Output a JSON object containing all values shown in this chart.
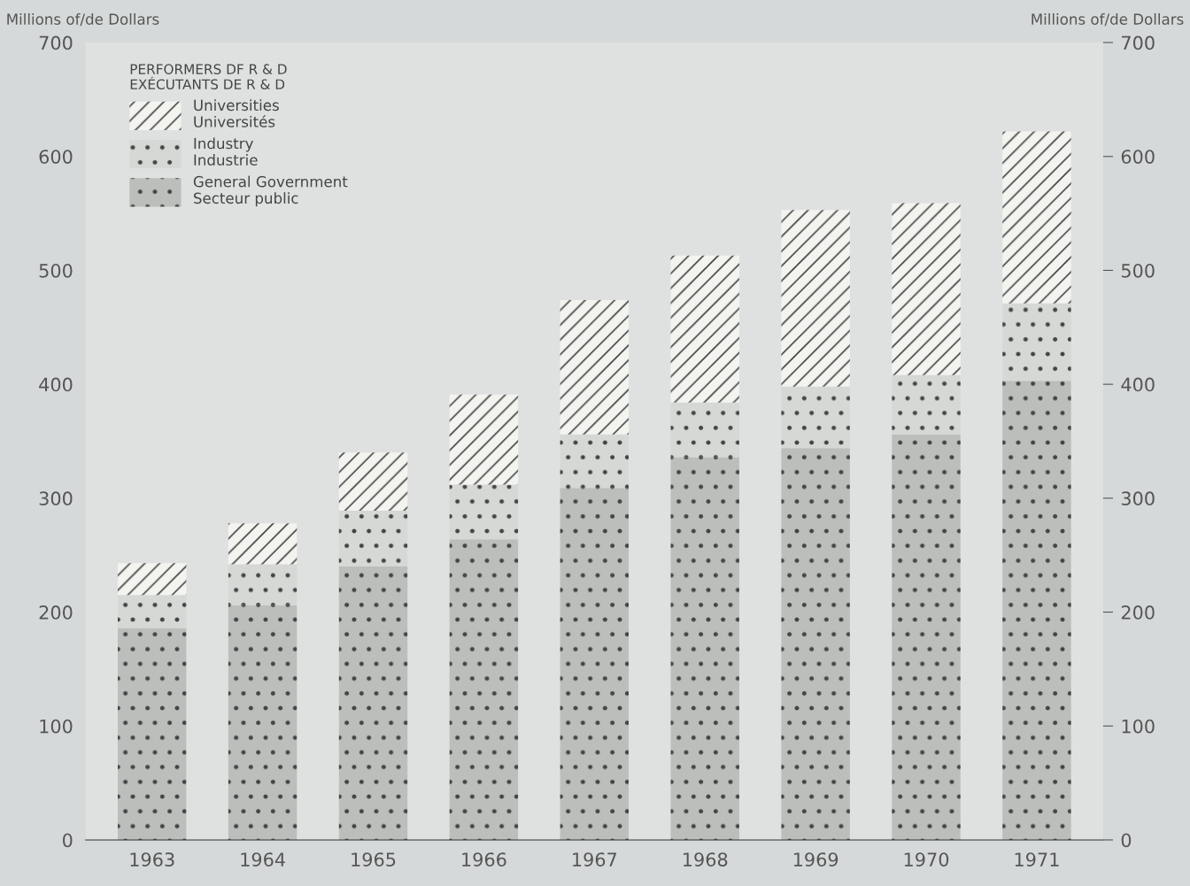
{
  "chart_data": {
    "type": "bar",
    "stacked": true,
    "ylabel": "Millions of/de Dollars",
    "y2label": "Millions of/de Dollars",
    "legend_title": "PERFORMERS DF R & D\nEXÉCUTANTS DE R & D",
    "categories": [
      "1963",
      "1964",
      "1965",
      "1966",
      "1967",
      "1968",
      "1969",
      "1970",
      "1971"
    ],
    "series": [
      {
        "name": "General Government\nSecteur public",
        "color": "#bcbebc",
        "values": [
          186,
          206,
          240,
          264,
          309,
          336,
          344,
          356,
          403
        ]
      },
      {
        "name": "Industry\nIndustrie",
        "color": "#d6d8d6",
        "values": [
          29,
          36,
          49,
          48,
          47,
          48,
          54,
          52,
          68
        ]
      },
      {
        "name": "Universities\nUniversités",
        "color": "#f3f3f0",
        "values": [
          28,
          36,
          51,
          79,
          118,
          129,
          155,
          151,
          151
        ]
      }
    ],
    "ylim": [
      0,
      700
    ],
    "yticks": [
      0,
      100,
      200,
      300,
      400,
      500,
      600,
      700
    ],
    "y2lim": [
      0,
      700
    ],
    "y2ticks": [
      0,
      100,
      200,
      300,
      400,
      500,
      600,
      700
    ],
    "legend": "top left",
    "grid": false
  }
}
